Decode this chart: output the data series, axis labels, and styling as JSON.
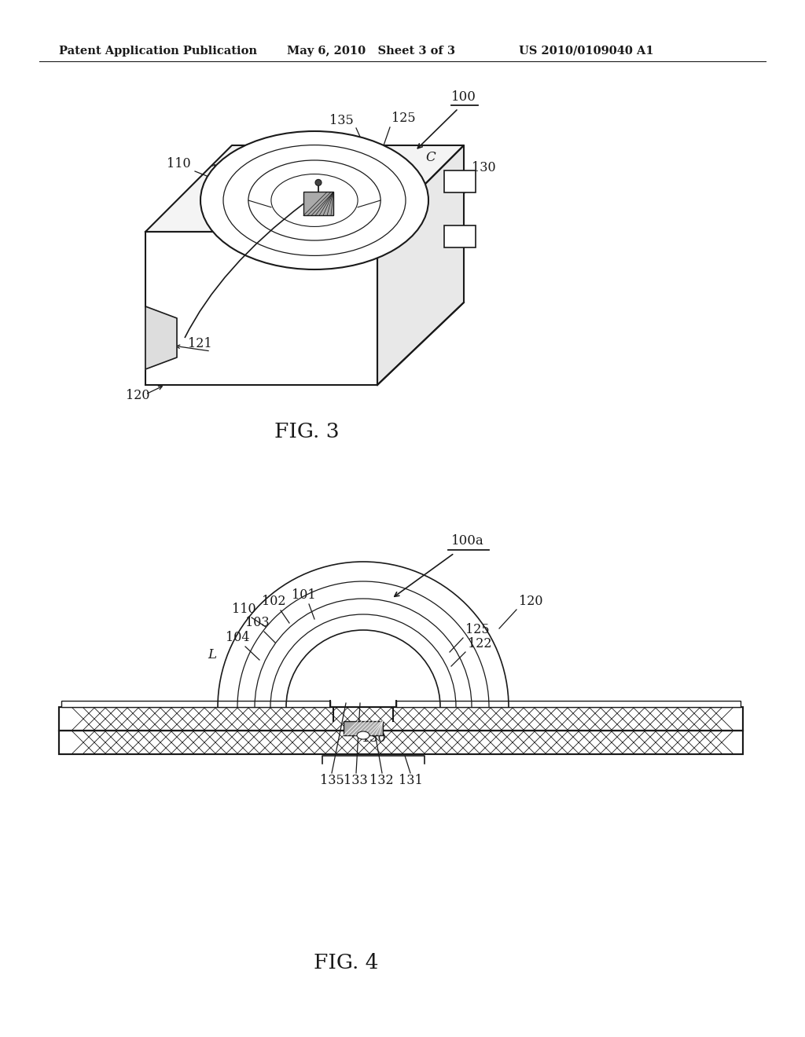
{
  "background_color": "#ffffff",
  "header_left": "Patent Application Publication",
  "header_mid": "May 6, 2010   Sheet 3 of 3",
  "header_right": "US 2010/0109040 A1",
  "fig3_label": "FIG. 3",
  "fig4_label": "FIG. 4",
  "fig3_ref": "100",
  "fig4_ref": "100a"
}
